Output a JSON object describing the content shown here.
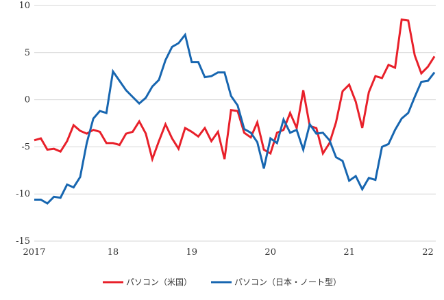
{
  "chart_data": {
    "type": "line",
    "title": "",
    "xlabel": "",
    "ylabel": "",
    "ylim": [
      -15,
      10
    ],
    "yticks": [
      10,
      5,
      0,
      -5,
      -10,
      -15
    ],
    "xlim": [
      2017,
      2022.1
    ],
    "xticks": [
      {
        "value": 2017,
        "label": "2017"
      },
      {
        "value": 2018,
        "label": "18"
      },
      {
        "value": 2019,
        "label": "19"
      },
      {
        "value": 2020,
        "label": "20"
      },
      {
        "value": 2021,
        "label": "21"
      },
      {
        "value": 2022,
        "label": "22"
      }
    ],
    "grid": "horizontal",
    "legend_position": "bottom",
    "series": [
      {
        "name": "パソコン（米国）",
        "color": "#e8202a",
        "start": 2017.0,
        "step": 0.08333,
        "values": [
          -4.3,
          -4.1,
          -5.3,
          -5.2,
          -5.5,
          -4.4,
          -2.7,
          -3.3,
          -3.6,
          -3.2,
          -3.4,
          -4.6,
          -4.6,
          -4.8,
          -3.6,
          -3.4,
          -2.3,
          -3.6,
          -6.3,
          -4.4,
          -2.6,
          -4.1,
          -5.2,
          -3.0,
          -3.4,
          -3.9,
          -3.0,
          -4.4,
          -3.4,
          -6.3,
          -1.1,
          -1.2,
          -3.5,
          -4.0,
          -2.4,
          -5.3,
          -5.7,
          -3.5,
          -3.2,
          -1.4,
          -3.0,
          1.0,
          -2.8,
          -3.0,
          -5.7,
          -4.6,
          -2.4,
          0.9,
          1.6,
          -0.2,
          -3.0,
          0.8,
          2.5,
          2.3,
          3.7,
          3.4,
          8.5,
          8.4,
          4.7,
          2.8,
          3.5,
          4.6
        ]
      },
      {
        "name": "パソコン（日本・ノート型）",
        "color": "#1766b0",
        "start": 2017.0,
        "step": 0.08333,
        "values": [
          -10.6,
          -10.6,
          -11.0,
          -10.3,
          -10.4,
          -9.0,
          -9.3,
          -8.2,
          -4.6,
          -2.0,
          -1.2,
          -1.4,
          3.0,
          2.0,
          1.0,
          0.3,
          -0.4,
          0.2,
          1.4,
          2.1,
          4.2,
          5.6,
          6.0,
          6.9,
          4.0,
          4.0,
          2.4,
          2.5,
          2.9,
          2.9,
          0.4,
          -0.6,
          -3.1,
          -3.5,
          -4.5,
          -7.3,
          -4.1,
          -4.6,
          -2.1,
          -3.5,
          -3.2,
          -5.3,
          -2.6,
          -3.6,
          -3.5,
          -4.3,
          -6.1,
          -6.5,
          -8.6,
          -8.1,
          -9.5,
          -8.3,
          -8.5,
          -5.0,
          -4.7,
          -3.2,
          -2.0,
          -1.4,
          0.3,
          1.9,
          2.0,
          2.9
        ]
      }
    ]
  }
}
